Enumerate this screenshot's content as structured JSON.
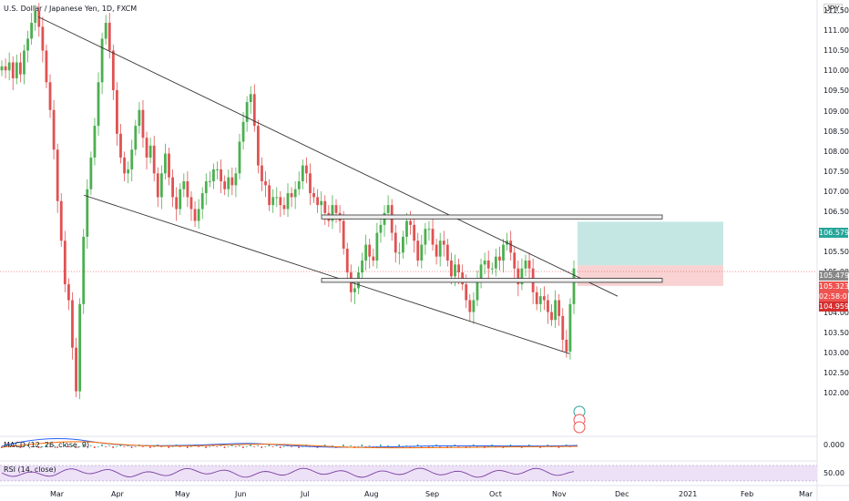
{
  "title": "U.S. Dollar / Japanese Yen, 1D, FXCM",
  "currency": "JPY",
  "macd_label": "MACD (12, 26, close, 9)",
  "rsi_label": "RSI (14, close)",
  "price_axis": [
    "111.50",
    "111.000",
    "110.500",
    "110.000",
    "109.500",
    "109.000",
    "108.500",
    "108.000",
    "107.500",
    "107.000",
    "106.500",
    "106.000",
    "105.500",
    "105.000",
    "104.500",
    "104.000",
    "103.500",
    "103.000",
    "102.500",
    "102.000"
  ],
  "macd_axis": "0.000",
  "rsi_axis": "50.00",
  "x_axis": [
    "Mar",
    "Apr",
    "May",
    "Jun",
    "Jul",
    "Aug",
    "Sep",
    "Oct",
    "Nov",
    "Dec",
    "2021",
    "Feb",
    "Mar"
  ],
  "price_tags": {
    "target": "106.579",
    "entry": "105.479",
    "current": "105.323",
    "countdown": "02:58:07",
    "stop": "104.959"
  },
  "colors": {
    "up": "#26a69a",
    "down": "#ef5350",
    "green_candle": "#4caf50",
    "red_candle": "#e05252",
    "target_zone": "#b2dfdb",
    "stop_zone": "#f8c8c8",
    "rsi_band": "#ede1f7",
    "rsi_line": "#7b3fa0"
  },
  "chart_data": {
    "type": "candlestick",
    "title": "U.S. Dollar / Japanese Yen, 1D, FXCM",
    "ylim": [
      101.6,
      111.9
    ],
    "months": [
      "Mar",
      "Apr",
      "May",
      "Jun",
      "Jul",
      "Aug",
      "Sep",
      "Oct",
      "Nov"
    ],
    "series": [
      {
        "close": [
          110.5,
          110.4,
          110.6,
          110.2,
          110.6,
          110.3,
          110.9,
          111.2,
          111.6,
          111.9,
          111.5,
          110.9,
          110.1,
          109.4,
          108.4,
          107.1,
          106.1,
          105.0,
          104.6,
          103.4,
          102.3,
          104.5,
          106.2,
          107.4,
          108.2,
          109.0,
          110.1,
          111.2,
          111.6,
          110.9,
          109.9,
          108.8,
          108.2,
          107.8,
          107.9,
          108.4,
          109.0,
          109.4,
          108.7,
          108.2,
          108.5,
          107.8,
          107.2,
          107.8,
          108.3,
          107.7,
          107.2,
          106.9,
          107.4,
          107.6,
          107.2,
          106.9,
          106.6,
          106.9,
          107.3,
          107.6,
          107.6,
          107.9,
          107.9,
          107.6,
          107.4,
          107.7,
          107.5,
          107.8,
          108.6,
          109.1,
          109.6,
          109.8,
          109.0,
          108.0,
          107.6,
          107.5,
          107.0,
          107.2,
          107.2,
          107.0,
          106.9,
          107.3,
          107.2,
          107.4,
          107.6,
          108.0,
          107.8,
          107.3,
          107.2,
          107.0,
          107.1,
          106.8,
          106.6,
          107.0,
          106.8,
          106.6,
          105.9,
          105.3,
          104.8,
          104.9,
          105.3,
          105.6,
          106.0,
          105.7,
          105.6,
          106.3,
          106.5,
          106.8,
          107.0,
          106.3,
          105.8,
          105.8,
          106.2,
          106.6,
          106.5,
          106.1,
          105.6,
          106.0,
          106.4,
          106.4,
          106.0,
          105.7,
          106.1,
          106.0,
          105.6,
          105.2,
          105.5,
          105.3,
          105.0,
          104.6,
          104.3,
          104.6,
          105.1,
          105.5,
          105.6,
          105.4,
          105.4,
          105.7,
          105.6,
          106.0,
          106.1,
          105.8,
          105.4,
          105.0,
          105.4,
          105.6,
          105.4,
          104.8,
          104.5,
          104.7,
          104.6,
          104.3,
          104.1,
          104.6,
          104.2,
          103.6,
          103.3,
          104.5,
          105.4
        ]
      }
    ],
    "resistance_zone": [
      106.65,
      106.75
    ],
    "support_zone": [
      105.05,
      105.15
    ],
    "target": 106.579,
    "entry": 105.479,
    "stop": 104.959,
    "current": 105.323
  }
}
